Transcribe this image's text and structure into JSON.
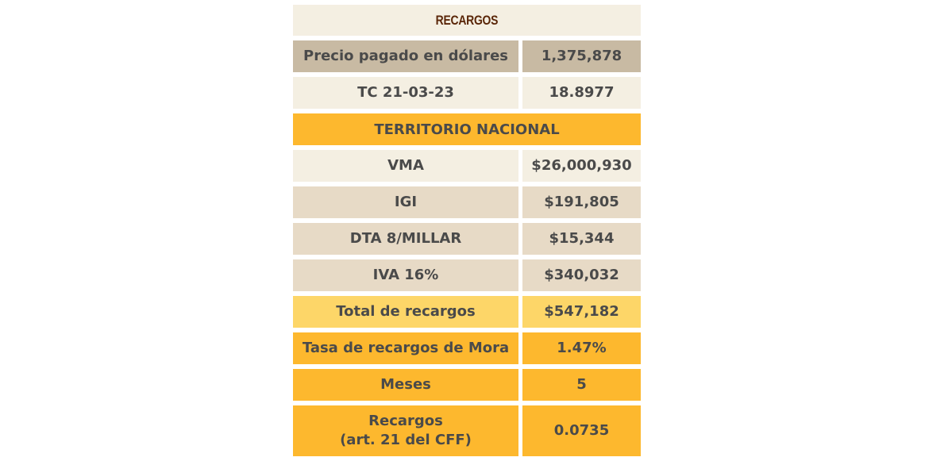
{
  "title": "RECARGOS",
  "rows_top": [
    {
      "label": "Precio pagado en dólares",
      "value": "1,375,878"
    },
    {
      "label": "TC 21-03-23",
      "value": "18.8977"
    }
  ],
  "section_title": "TERRITORIO NACIONAL",
  "rows_mid": [
    {
      "label": "VMA",
      "value": "$26,000,930"
    },
    {
      "label": "IGI",
      "value": "$191,805"
    },
    {
      "label": "DTA 8/MILLAR",
      "value": "$15,344"
    },
    {
      "label": "IVA 16%",
      "value": "$340,032"
    },
    {
      "label": "Total de recargos",
      "value": "$547,182"
    },
    {
      "label": "Tasa de recargos de Mora",
      "value": "1.47%"
    },
    {
      "label": "Meses",
      "value": "5"
    }
  ],
  "last_row": {
    "label_line1": "Recargos",
    "label_line2": "(art. 21 del CFF)",
    "value": "0.0735"
  },
  "colors": {
    "title_text": "#5a2608",
    "text": "#4a4a4a",
    "dark": "#c8baa3",
    "light": "#f4efe2",
    "beige": "#e7dac6",
    "pale_yellow": "#fdd668",
    "orange": "#fdb82e"
  }
}
